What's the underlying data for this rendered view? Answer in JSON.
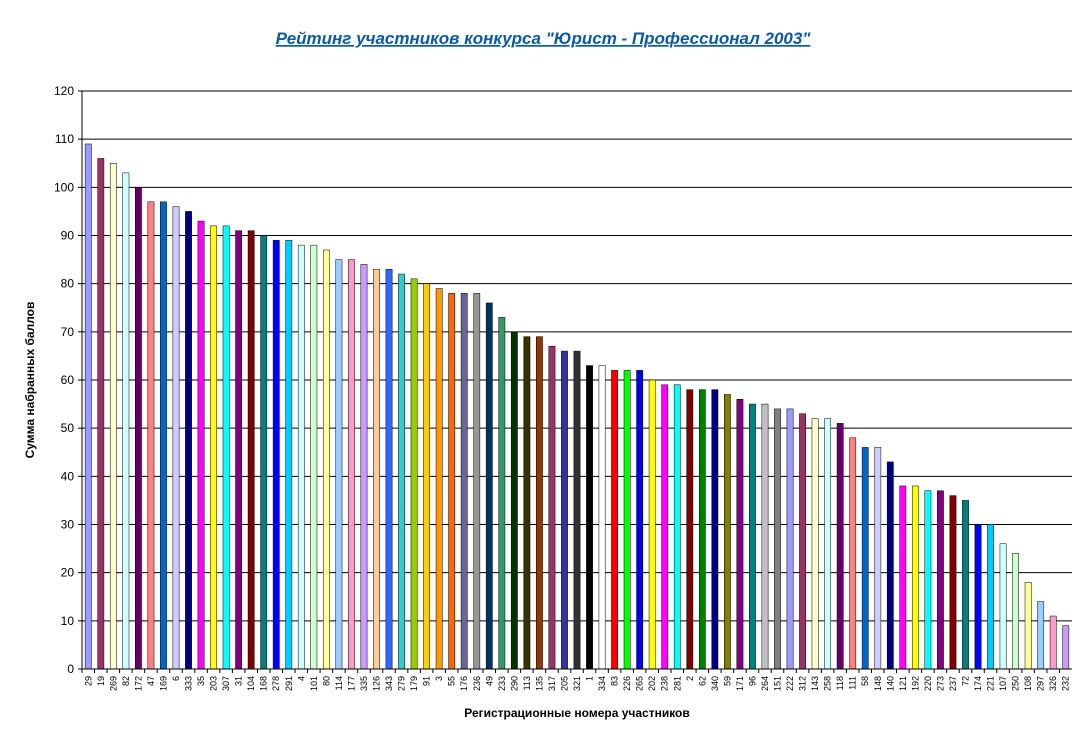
{
  "chart_data": {
    "type": "bar",
    "title": "Рейтинг участников конкурса \"Юрист - Профессионал 2003\"",
    "xlabel": "Регистрационные номера участников",
    "ylabel": "Сумма набранных баллов",
    "ylim": [
      0,
      120
    ],
    "yticks": [
      0,
      10,
      20,
      30,
      40,
      50,
      60,
      70,
      80,
      90,
      100,
      110,
      120
    ],
    "grid": true,
    "categories": [
      "29",
      "19",
      "269",
      "82",
      "172",
      "47",
      "169",
      "6",
      "333",
      "35",
      "203",
      "307",
      "31",
      "104",
      "168",
      "278",
      "291",
      "4",
      "101",
      "80",
      "114",
      "177",
      "335",
      "126",
      "343",
      "279",
      "179",
      "91",
      "3",
      "55",
      "176",
      "236",
      "49",
      "233",
      "290",
      "113",
      "135",
      "317",
      "205",
      "321",
      "1",
      "334",
      "83",
      "226",
      "265",
      "202",
      "238",
      "281",
      "2",
      "62",
      "340",
      "59",
      "171",
      "96",
      "264",
      "151",
      "222",
      "312",
      "143",
      "258",
      "118",
      "111",
      "58",
      "148",
      "140",
      "121",
      "192",
      "220",
      "273",
      "237",
      "72",
      "174",
      "221",
      "107",
      "250",
      "108",
      "297",
      "326",
      "232"
    ],
    "values": [
      109,
      106,
      105,
      103,
      100,
      97,
      97,
      96,
      95,
      93,
      92,
      92,
      91,
      91,
      90,
      89,
      89,
      88,
      88,
      87,
      85,
      85,
      84,
      83,
      83,
      82,
      81,
      80,
      79,
      78,
      78,
      78,
      76,
      73,
      70,
      69,
      69,
      67,
      66,
      66,
      63,
      63,
      62,
      62,
      62,
      60,
      59,
      59,
      58,
      58,
      58,
      57,
      56,
      55,
      55,
      54,
      54,
      53,
      52,
      52,
      51,
      48,
      46,
      46,
      43,
      38,
      38,
      37,
      37,
      36,
      35,
      30,
      30,
      26,
      24,
      18,
      14,
      11,
      9
    ],
    "colors": [
      "#9999ff",
      "#993366",
      "#ffffcc",
      "#ccffff",
      "#660066",
      "#ff8080",
      "#0066cc",
      "#ccccff",
      "#000080",
      "#ff00ff",
      "#ffff00",
      "#00ffff",
      "#800080",
      "#800000",
      "#008080",
      "#0000ff",
      "#00ccff",
      "#ccffff",
      "#ccffcc",
      "#ffff99",
      "#99ccff",
      "#ff99cc",
      "#cc99ff",
      "#ffcc99",
      "#3366ff",
      "#33cccc",
      "#99cc00",
      "#ffcc00",
      "#ff9900",
      "#ff6600",
      "#666699",
      "#969696",
      "#003366",
      "#339966",
      "#003300",
      "#333300",
      "#993300",
      "#993366",
      "#333399",
      "#333333",
      "#000000",
      "#ffffff",
      "#ff0000",
      "#00ff00",
      "#0000ff",
      "#ffff00",
      "#ff00ff",
      "#00ffff",
      "#800000",
      "#008000",
      "#000080",
      "#808000",
      "#800080",
      "#008080",
      "#c0c0c0",
      "#808080",
      "#9999ff",
      "#993366",
      "#ffffcc",
      "#ccffff",
      "#660066",
      "#ff8080",
      "#0066cc",
      "#ccccff",
      "#000080",
      "#ff00ff",
      "#ffff00",
      "#00ffff",
      "#800080",
      "#800000",
      "#008080",
      "#0000ff",
      "#00ccff",
      "#ccffff",
      "#ccffcc",
      "#ffff99",
      "#99ccff",
      "#ff99cc",
      "#cc99ff"
    ]
  }
}
